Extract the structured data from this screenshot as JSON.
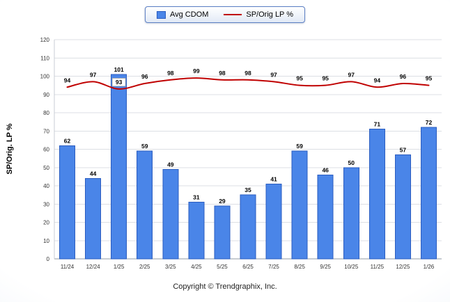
{
  "footer": {
    "text": "Copyright © Trendgraphix, Inc."
  },
  "chart_data": {
    "type": "bar",
    "title": "",
    "xlabel": "",
    "ylabel": "SP/Orig. LP %",
    "ylim": [
      0,
      120
    ],
    "ytick_step": 10,
    "grid": true,
    "legend_position": "top-center",
    "categories": [
      "11/24",
      "12/24",
      "1/25",
      "2/25",
      "3/25",
      "4/25",
      "5/25",
      "6/25",
      "7/25",
      "8/25",
      "9/25",
      "10/25",
      "11/25",
      "12/25",
      "1/26"
    ],
    "series": [
      {
        "name": "Avg CDOM",
        "type": "bar",
        "color": "#4a85e8",
        "stroke": "#2b5dc0",
        "values": [
          62,
          44,
          101,
          59,
          49,
          31,
          29,
          35,
          41,
          59,
          46,
          50,
          71,
          57,
          72
        ]
      },
      {
        "name": "SP/Orig LP %",
        "type": "line",
        "color": "#c00000",
        "values": [
          94,
          97,
          93,
          96,
          98,
          99,
          98,
          98,
          97,
          95,
          95,
          97,
          94,
          96,
          95
        ]
      }
    ]
  }
}
